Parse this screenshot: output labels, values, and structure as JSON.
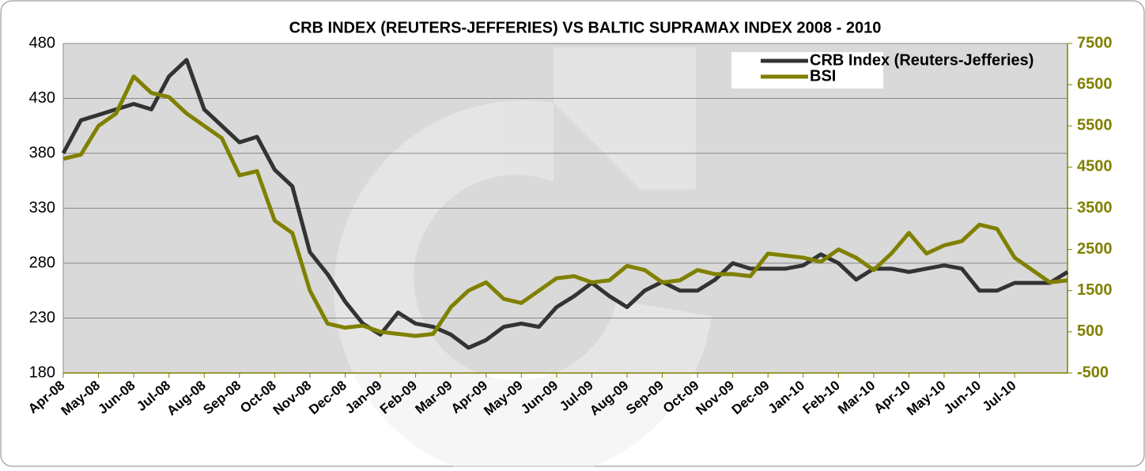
{
  "chart_data": {
    "type": "line",
    "title": "CRB INDEX (REUTERS-JEFFERIES) VS BALTIC SUPRAMAX INDEX 2008 - 2010",
    "categories": [
      "Apr-08",
      null,
      "May-08",
      null,
      "Jun-08",
      null,
      "Jul-08",
      null,
      "Aug-08",
      null,
      "Sep-08",
      null,
      "Oct-08",
      null,
      "Nov-08",
      null,
      "Dec-08",
      null,
      "Jan-09",
      null,
      "Feb-09",
      null,
      "Mar-09",
      null,
      "Apr-09",
      null,
      "May-09",
      null,
      "Jun-09",
      null,
      "Jul-09",
      null,
      "Aug-09",
      null,
      "Sep-09",
      null,
      "Oct-09",
      null,
      "Nov-09",
      null,
      "Dec-09",
      null,
      "Jan-10",
      null,
      "Feb-10",
      null,
      "Mar-10",
      null,
      "Apr-10",
      null,
      "May-10",
      null,
      "Jun-10",
      null,
      "Jul-10",
      null,
      null,
      null
    ],
    "series": [
      {
        "name": "CRB Index (Reuters-Jefferies)",
        "color": "#333333",
        "values": [
          380,
          410,
          415,
          420,
          425,
          420,
          450,
          465,
          420,
          405,
          390,
          395,
          365,
          350,
          290,
          270,
          245,
          225,
          215,
          235,
          225,
          222,
          215,
          203,
          210,
          222,
          225,
          222,
          240,
          250,
          262,
          250,
          240,
          255,
          263,
          255,
          255,
          265,
          280,
          275,
          275,
          275,
          278,
          288,
          280,
          265,
          275,
          275,
          272,
          275,
          278,
          275,
          255,
          255,
          262,
          262,
          262,
          272
        ]
      },
      {
        "name": "BSI",
        "color": "#808000",
        "axis": "y2",
        "values": [
          4700,
          4800,
          5500,
          5800,
          6700,
          6300,
          6200,
          5800,
          5500,
          5200,
          4300,
          4400,
          3200,
          2900,
          1500,
          700,
          600,
          650,
          500,
          450,
          400,
          450,
          1100,
          1500,
          1700,
          1300,
          1200,
          1500,
          1800,
          1850,
          1700,
          1750,
          2100,
          2000,
          1700,
          1750,
          2000,
          1900,
          1900,
          1850,
          2400,
          2350,
          2300,
          2200,
          2500,
          2300,
          2000,
          2400,
          2900,
          2400,
          2600,
          2700,
          3100,
          3000,
          2300,
          2000,
          1700,
          1750
        ]
      }
    ],
    "ylim": [
      180,
      480
    ],
    "yticks": [
      180,
      230,
      280,
      330,
      380,
      430,
      480
    ],
    "y2lim": [
      -500,
      7500
    ],
    "y2ticks": [
      -500,
      500,
      1500,
      2500,
      3500,
      4500,
      5500,
      6500,
      7500
    ],
    "grid": true,
    "legend": "top-right"
  }
}
